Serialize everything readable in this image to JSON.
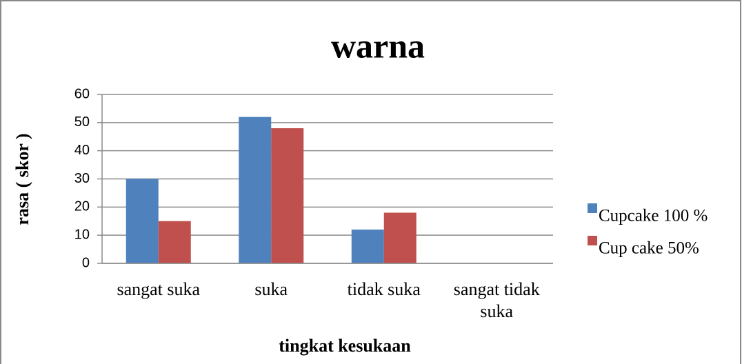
{
  "chart_data": {
    "type": "bar",
    "title": "warna",
    "x_label": "tingkat kesukaan",
    "y_label": "rasa ( skor )",
    "categories": [
      "sangat suka",
      "suka",
      "tidak suka",
      "sangat tidak suka"
    ],
    "series": [
      {
        "name": "Cupcake 100 %",
        "color": "#4f81bd",
        "values": [
          30,
          52,
          12,
          0
        ]
      },
      {
        "name": "Cup cake 50%",
        "color": "#c0504d",
        "values": [
          15,
          48,
          18,
          0
        ]
      }
    ],
    "ylim": [
      0,
      60
    ],
    "yticks": [
      0,
      10,
      20,
      30,
      40,
      50,
      60
    ],
    "grid": true,
    "legend": "right"
  }
}
